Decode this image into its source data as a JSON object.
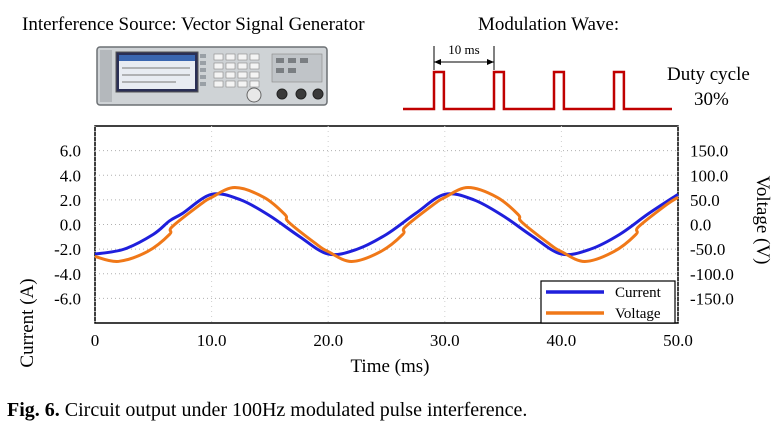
{
  "figure": {
    "source_title": "Interference Source: Vector Signal Generator",
    "modulation_title": "Modulation Wave:",
    "period_label": "10 ms",
    "duty_label": "Duty cycle",
    "duty_value": "30%",
    "caption_label": "Fig. 6.",
    "caption_text": " Circuit output under 100Hz modulated pulse interference."
  },
  "colors": {
    "current": "#1f1fdc",
    "voltage": "#f07818",
    "pulse": "#c00000"
  },
  "chart_data": {
    "type": "line",
    "title": "",
    "xlabel": "Time (ms)",
    "ylabel": "Current (A)",
    "y2label": "Voltage (V)",
    "xlim": [
      0,
      50
    ],
    "ylim": [
      -8.0,
      8.0
    ],
    "y2lim": [
      -200,
      200
    ],
    "xticks": [
      "0",
      "10.0",
      "20.0",
      "30.0",
      "40.0",
      "50.0"
    ],
    "yticks": [
      "6.0",
      "4.0",
      "2.0",
      "0.0",
      "-2.0",
      "-4.0",
      "-6.0"
    ],
    "y2ticks": [
      "150.0",
      "100.0",
      "50.0",
      "0.0",
      "-50.0",
      "-100.0",
      "-150.0"
    ],
    "grid": true,
    "legend_position": "bottom-right",
    "series": [
      {
        "name": "Current",
        "axis": "left",
        "x": [
          0,
          2.5,
          5,
          6.4,
          7.5,
          10,
          12.5,
          15,
          17.5,
          20,
          22.5,
          25,
          27.5,
          30,
          32.5,
          35,
          37.5,
          40,
          42.5,
          45,
          47.5,
          50
        ],
        "y": [
          -2.4,
          -2.0,
          -0.8,
          0.3,
          0.9,
          2.45,
          2.0,
          0.7,
          -0.95,
          -2.4,
          -2.0,
          -0.8,
          0.9,
          2.45,
          2.0,
          0.7,
          -0.95,
          -2.4,
          -2.0,
          -0.8,
          0.9,
          2.45
        ]
      },
      {
        "name": "Voltage",
        "axis": "right",
        "x": [
          0,
          2.0,
          4.5,
          6.4,
          6.6,
          9.0,
          10.0,
          12.0,
          14.5,
          16.3,
          16.6,
          19.0,
          20.0,
          22.0,
          24.5,
          26.4,
          26.6,
          29.0,
          30.0,
          32.0,
          34.5,
          36.3,
          36.6,
          39.0,
          40.0,
          42.0,
          44.5,
          46.4,
          46.6,
          49.0,
          50.0
        ],
        "y": [
          -65,
          -75,
          -55,
          -20,
          -5,
          40,
          55,
          75,
          55,
          20,
          5,
          -40,
          -55,
          -75,
          -55,
          -20,
          -5,
          40,
          55,
          75,
          55,
          20,
          5,
          -40,
          -55,
          -75,
          -55,
          -20,
          -5,
          40,
          55
        ]
      }
    ],
    "pulse_wave": {
      "period_ms": 10,
      "duty_cycle": 0.3,
      "cycles": 4
    }
  }
}
